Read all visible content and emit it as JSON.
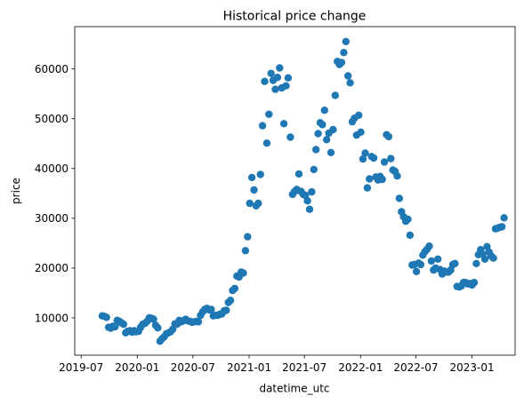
{
  "chart_data": {
    "type": "scatter",
    "title": "Historical price change",
    "xlabel": "datetime_utc",
    "ylabel": "price",
    "x_ticks": [
      "2019-07",
      "2020-01",
      "2020-07",
      "2021-01",
      "2021-07",
      "2022-01",
      "2022-07",
      "2023-01"
    ],
    "y_ticks": [
      10000,
      20000,
      30000,
      40000,
      50000,
      60000
    ],
    "xlim": [
      "2019-06-10",
      "2023-05-22"
    ],
    "ylim": [
      2500,
      68500
    ],
    "grid": false,
    "marker_color": "#1f77b4",
    "points": [
      [
        "2019-09-08",
        10400
      ],
      [
        "2019-09-15",
        10300
      ],
      [
        "2019-09-22",
        10100
      ],
      [
        "2019-09-29",
        8100
      ],
      [
        "2019-10-06",
        7900
      ],
      [
        "2019-10-13",
        8300
      ],
      [
        "2019-10-20",
        8200
      ],
      [
        "2019-10-27",
        9500
      ],
      [
        "2019-11-03",
        9300
      ],
      [
        "2019-11-10",
        9000
      ],
      [
        "2019-11-17",
        8700
      ],
      [
        "2019-11-24",
        7000
      ],
      [
        "2019-12-01",
        7300
      ],
      [
        "2019-12-08",
        7400
      ],
      [
        "2019-12-15",
        7100
      ],
      [
        "2019-12-22",
        7400
      ],
      [
        "2019-12-29",
        7200
      ],
      [
        "2020-01-05",
        7300
      ],
      [
        "2020-01-12",
        8100
      ],
      [
        "2020-01-19",
        8700
      ],
      [
        "2020-01-26",
        8900
      ],
      [
        "2020-02-02",
        9300
      ],
      [
        "2020-02-09",
        10000
      ],
      [
        "2020-02-16",
        9900
      ],
      [
        "2020-02-23",
        9700
      ],
      [
        "2020-03-01",
        8500
      ],
      [
        "2020-03-08",
        8000
      ],
      [
        "2020-03-15",
        5300
      ],
      [
        "2020-03-22",
        5800
      ],
      [
        "2020-03-29",
        6200
      ],
      [
        "2020-04-05",
        6800
      ],
      [
        "2020-04-12",
        7000
      ],
      [
        "2020-04-19",
        7200
      ],
      [
        "2020-04-26",
        7700
      ],
      [
        "2020-05-03",
        8800
      ],
      [
        "2020-05-10",
        8700
      ],
      [
        "2020-05-17",
        9500
      ],
      [
        "2020-05-24",
        9200
      ],
      [
        "2020-05-31",
        9400
      ],
      [
        "2020-06-07",
        9700
      ],
      [
        "2020-06-14",
        9400
      ],
      [
        "2020-06-21",
        9300
      ],
      [
        "2020-06-28",
        9100
      ],
      [
        "2020-07-05",
        9200
      ],
      [
        "2020-07-12",
        9300
      ],
      [
        "2020-07-19",
        9200
      ],
      [
        "2020-07-26",
        10500
      ],
      [
        "2020-08-02",
        11200
      ],
      [
        "2020-08-09",
        11700
      ],
      [
        "2020-08-16",
        11900
      ],
      [
        "2020-08-23",
        11600
      ],
      [
        "2020-08-30",
        11700
      ],
      [
        "2020-09-06",
        10400
      ],
      [
        "2020-09-13",
        10500
      ],
      [
        "2020-09-20",
        10500
      ],
      [
        "2020-09-27",
        10700
      ],
      [
        "2020-10-04",
        10800
      ],
      [
        "2020-10-11",
        11400
      ],
      [
        "2020-10-18",
        11500
      ],
      [
        "2020-10-25",
        13100
      ],
      [
        "2020-11-01",
        13500
      ],
      [
        "2020-11-08",
        15500
      ],
      [
        "2020-11-15",
        15900
      ],
      [
        "2020-11-22",
        18400
      ],
      [
        "2020-11-29",
        18200
      ],
      [
        "2020-12-06",
        19200
      ],
      [
        "2020-12-13",
        19000
      ],
      [
        "2020-12-20",
        23500
      ],
      [
        "2020-12-27",
        26300
      ],
      [
        "2021-01-03",
        33000
      ],
      [
        "2021-01-10",
        38200
      ],
      [
        "2021-01-17",
        35700
      ],
      [
        "2021-01-24",
        32500
      ],
      [
        "2021-01-31",
        33000
      ],
      [
        "2021-02-07",
        38800
      ],
      [
        "2021-02-14",
        48600
      ],
      [
        "2021-02-21",
        57500
      ],
      [
        "2021-02-28",
        45100
      ],
      [
        "2021-03-07",
        50900
      ],
      [
        "2021-03-14",
        59100
      ],
      [
        "2021-03-21",
        57700
      ],
      [
        "2021-03-28",
        55900
      ],
      [
        "2021-04-04",
        58300
      ],
      [
        "2021-04-11",
        60200
      ],
      [
        "2021-04-18",
        56200
      ],
      [
        "2021-04-25",
        49000
      ],
      [
        "2021-05-02",
        56600
      ],
      [
        "2021-05-09",
        58200
      ],
      [
        "2021-05-16",
        46300
      ],
      [
        "2021-05-23",
        34800
      ],
      [
        "2021-05-30",
        35400
      ],
      [
        "2021-06-06",
        35800
      ],
      [
        "2021-06-13",
        38900
      ],
      [
        "2021-06-20",
        35400
      ],
      [
        "2021-06-27",
        34800
      ],
      [
        "2021-07-04",
        34600
      ],
      [
        "2021-07-11",
        33500
      ],
      [
        "2021-07-18",
        31800
      ],
      [
        "2021-07-25",
        35300
      ],
      [
        "2021-08-01",
        39800
      ],
      [
        "2021-08-08",
        43800
      ],
      [
        "2021-08-15",
        47000
      ],
      [
        "2021-08-22",
        49200
      ],
      [
        "2021-08-29",
        48800
      ],
      [
        "2021-09-05",
        51700
      ],
      [
        "2021-09-12",
        45800
      ],
      [
        "2021-09-19",
        47100
      ],
      [
        "2021-09-26",
        43200
      ],
      [
        "2021-10-03",
        47800
      ],
      [
        "2021-10-10",
        54700
      ],
      [
        "2021-10-17",
        61500
      ],
      [
        "2021-10-24",
        60900
      ],
      [
        "2021-10-31",
        61300
      ],
      [
        "2021-11-07",
        63300
      ],
      [
        "2021-11-14",
        65500
      ],
      [
        "2021-11-21",
        58600
      ],
      [
        "2021-11-28",
        57200
      ],
      [
        "2021-12-05",
        49400
      ],
      [
        "2021-12-12",
        50100
      ],
      [
        "2021-12-19",
        46700
      ],
      [
        "2021-12-26",
        50700
      ],
      [
        "2022-01-02",
        47300
      ],
      [
        "2022-01-09",
        41900
      ],
      [
        "2022-01-16",
        43100
      ],
      [
        "2022-01-23",
        36100
      ],
      [
        "2022-01-30",
        37900
      ],
      [
        "2022-02-06",
        42400
      ],
      [
        "2022-02-13",
        42100
      ],
      [
        "2022-02-20",
        38300
      ],
      [
        "2022-02-27",
        37700
      ],
      [
        "2022-03-06",
        38400
      ],
      [
        "2022-03-13",
        37800
      ],
      [
        "2022-03-20",
        41300
      ],
      [
        "2022-03-27",
        46800
      ],
      [
        "2022-04-03",
        46400
      ],
      [
        "2022-04-10",
        42000
      ],
      [
        "2022-04-17",
        39700
      ],
      [
        "2022-04-24",
        39400
      ],
      [
        "2022-05-01",
        38500
      ],
      [
        "2022-05-08",
        34000
      ],
      [
        "2022-05-15",
        31300
      ],
      [
        "2022-05-22",
        30300
      ],
      [
        "2022-05-29",
        29400
      ],
      [
        "2022-06-05",
        29800
      ],
      [
        "2022-06-12",
        26600
      ],
      [
        "2022-06-19",
        20600
      ],
      [
        "2022-06-26",
        20700
      ],
      [
        "2022-07-03",
        19300
      ],
      [
        "2022-07-10",
        21000
      ],
      [
        "2022-07-17",
        20700
      ],
      [
        "2022-07-24",
        22600
      ],
      [
        "2022-07-31",
        23300
      ],
      [
        "2022-08-07",
        23800
      ],
      [
        "2022-08-14",
        24400
      ],
      [
        "2022-08-21",
        21400
      ],
      [
        "2022-08-28",
        19600
      ],
      [
        "2022-09-04",
        20000
      ],
      [
        "2022-09-11",
        21800
      ],
      [
        "2022-09-18",
        19700
      ],
      [
        "2022-09-25",
        18800
      ],
      [
        "2022-10-02",
        19400
      ],
      [
        "2022-10-09",
        19200
      ],
      [
        "2022-10-16",
        19200
      ],
      [
        "2022-10-23",
        19600
      ],
      [
        "2022-10-30",
        20700
      ],
      [
        "2022-11-06",
        20900
      ],
      [
        "2022-11-13",
        16300
      ],
      [
        "2022-11-20",
        16200
      ],
      [
        "2022-11-27",
        16400
      ],
      [
        "2022-12-04",
        17100
      ],
      [
        "2022-12-11",
        17100
      ],
      [
        "2022-12-18",
        16800
      ],
      [
        "2022-12-25",
        16900
      ],
      [
        "2023-01-01",
        16600
      ],
      [
        "2023-01-08",
        17100
      ],
      [
        "2023-01-15",
        20900
      ],
      [
        "2023-01-22",
        22700
      ],
      [
        "2023-01-29",
        23700
      ],
      [
        "2023-02-05",
        22800
      ],
      [
        "2023-02-12",
        21800
      ],
      [
        "2023-02-19",
        24300
      ],
      [
        "2023-02-26",
        23200
      ],
      [
        "2023-03-05",
        22400
      ],
      [
        "2023-03-12",
        22000
      ],
      [
        "2023-03-19",
        27900
      ],
      [
        "2023-03-26",
        28000
      ],
      [
        "2023-04-02",
        28200
      ],
      [
        "2023-04-09",
        28300
      ],
      [
        "2023-04-16",
        30100
      ]
    ]
  }
}
